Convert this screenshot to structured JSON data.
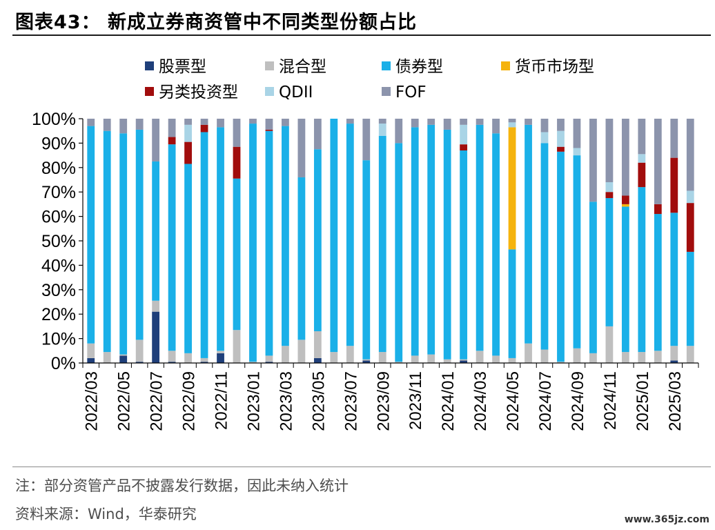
{
  "title": "图表43：  新成立券商资管中不同类型份额占比",
  "notes": {
    "line1": "注：部分资管产品不披露发行数据，因此未纳入统计",
    "line2": "资料来源：Wind，华泰研究"
  },
  "watermark": "www.365jz.com",
  "chart_data": {
    "type": "bar",
    "stacked": true,
    "ylim": [
      0,
      100
    ],
    "yticks": [
      "0%",
      "10%",
      "20%",
      "30%",
      "40%",
      "50%",
      "60%",
      "70%",
      "80%",
      "90%",
      "100%"
    ],
    "legend_position": "top",
    "categories": [
      "2022/03",
      "2022/04",
      "2022/05",
      "2022/06",
      "2022/07",
      "2022/08",
      "2022/09",
      "2022/10",
      "2022/11",
      "2022/12",
      "2023/01",
      "2023/02",
      "2023/03",
      "2023/04",
      "2023/05",
      "2023/06",
      "2023/07",
      "2023/08",
      "2023/09",
      "2023/10",
      "2023/11",
      "2023/12",
      "2024/01",
      "2024/02",
      "2024/03",
      "2024/04",
      "2024/05",
      "2024/06",
      "2024/07",
      "2024/08",
      "2024/09",
      "2024/10",
      "2024/11",
      "2024/12",
      "2025/01",
      "2025/02",
      "2025/03",
      "2025/04"
    ],
    "xtick_labels": [
      "2022/03",
      "2022/05",
      "2022/07",
      "2022/09",
      "2022/11",
      "2023/01",
      "2023/03",
      "2023/05",
      "2023/07",
      "2023/09",
      "2023/11",
      "2024/01",
      "2024/03",
      "2024/05",
      "2024/07",
      "2024/09",
      "2024/11",
      "2025/01",
      "2025/03"
    ],
    "series": [
      {
        "name": "股票型",
        "color": "#1f3f7a",
        "values": [
          2,
          0,
          3,
          0.5,
          21,
          0.5,
          0,
          0.5,
          4,
          0,
          0,
          0.5,
          0,
          0,
          2,
          0,
          0,
          1,
          0,
          0,
          0,
          0,
          0,
          1,
          0,
          0,
          0,
          0,
          0,
          0,
          0,
          0,
          0,
          0,
          0,
          0,
          1,
          0
        ]
      },
      {
        "name": "混合型",
        "color": "#bfbfbf",
        "values": [
          6,
          4.5,
          0.5,
          9,
          4.5,
          4.5,
          4,
          1.5,
          1,
          13.5,
          0.5,
          2.5,
          7,
          9.5,
          11,
          4.5,
          7,
          0.5,
          4.5,
          0.5,
          3,
          3.5,
          1.5,
          0.5,
          5,
          3,
          2,
          8,
          5.5,
          0.5,
          6,
          4,
          15,
          4.5,
          4.5,
          5,
          6,
          7
        ]
      },
      {
        "name": "债券型",
        "color": "#1ab0e8",
        "values": [
          89,
          90.5,
          90.5,
          86,
          57,
          84.5,
          77.5,
          92.5,
          91.5,
          62,
          97.5,
          92,
          90,
          66.5,
          74.5,
          95.5,
          91,
          81.5,
          88.5,
          89.5,
          93.5,
          94,
          94,
          85.5,
          92.5,
          91,
          44.5,
          89.5,
          84.5,
          86,
          79,
          62,
          52.5,
          59.5,
          67.5,
          56,
          54.5,
          38.5
        ]
      },
      {
        "name": "货币市场型",
        "color": "#f5b30d",
        "values": [
          0,
          0,
          0,
          0,
          0,
          0,
          0,
          0,
          0,
          0,
          0,
          0,
          0,
          0,
          0,
          0,
          0,
          0,
          0,
          0,
          0,
          0,
          0,
          0,
          0,
          0,
          50,
          0,
          0,
          0,
          0,
          0,
          0,
          1,
          0,
          0,
          0,
          0
        ]
      },
      {
        "name": "另类投资型",
        "color": "#a10d0d",
        "values": [
          0,
          0,
          0,
          0,
          0,
          3,
          9,
          3,
          0,
          13,
          0,
          0.5,
          0,
          0,
          0,
          0,
          0,
          0,
          0,
          0,
          0,
          0,
          0,
          2.5,
          0,
          0,
          0,
          0,
          0,
          2,
          0,
          0,
          2.5,
          3.5,
          10,
          4,
          22.5,
          20
        ]
      },
      {
        "name": "QDII",
        "color": "#a9d4e6",
        "values": [
          0,
          0,
          0,
          0,
          0,
          0,
          7,
          0,
          0,
          0,
          0,
          0,
          0,
          0,
          0,
          0,
          0,
          0,
          5,
          0,
          0,
          0,
          0,
          8,
          0,
          0,
          2,
          0,
          4.5,
          6.5,
          3,
          0,
          4,
          0,
          3.5,
          0,
          0,
          5
        ]
      },
      {
        "name": "FOF",
        "color": "#8c94ac",
        "values": [
          3,
          5,
          6,
          4.5,
          17.5,
          7.5,
          2.5,
          2.5,
          3.5,
          11.5,
          2,
          4.5,
          3,
          24,
          12.5,
          0,
          2,
          17,
          2,
          10,
          3.5,
          2.5,
          4.5,
          2.5,
          2.5,
          6,
          1.5,
          2.5,
          5.5,
          5,
          12,
          34,
          26,
          31.5,
          14.5,
          35,
          16,
          29.5
        ]
      }
    ]
  }
}
